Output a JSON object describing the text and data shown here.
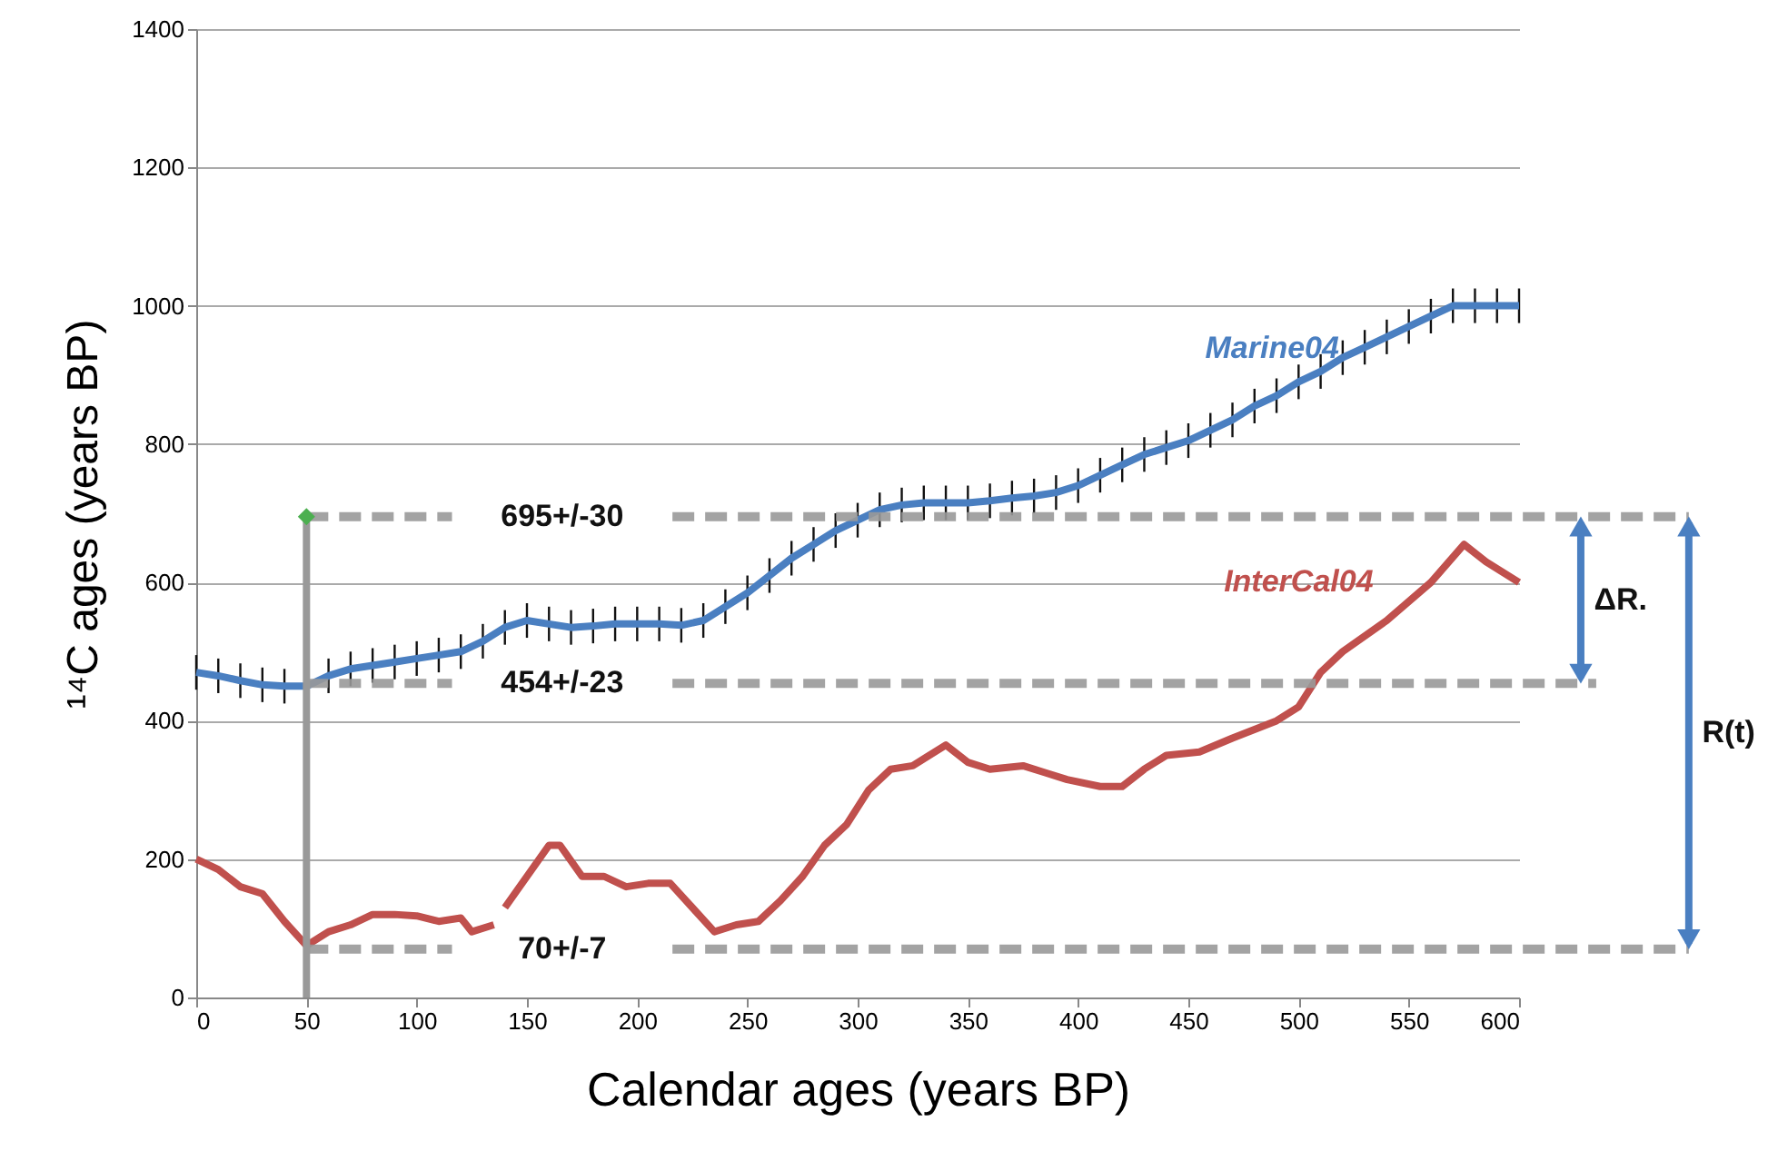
{
  "chart_data": {
    "type": "line",
    "xlabel": "Calendar ages (years BP)",
    "ylabel": "¹⁴C ages (years BP)",
    "xlim": [
      0,
      600
    ],
    "xticks": [
      0,
      50,
      100,
      150,
      200,
      250,
      300,
      350,
      400,
      450,
      500,
      550,
      600
    ],
    "ylim": [
      0,
      1400
    ],
    "yticks": [
      0,
      200,
      400,
      600,
      800,
      1000,
      1200,
      1400
    ],
    "grid": "y",
    "marker": "none",
    "line_style": "solid",
    "series": [
      {
        "name": "Marine04",
        "color": "#4a7fc1",
        "x": [
          0,
          10,
          20,
          30,
          40,
          50,
          60,
          70,
          80,
          90,
          100,
          110,
          120,
          130,
          140,
          150,
          160,
          170,
          180,
          190,
          200,
          210,
          220,
          230,
          240,
          250,
          260,
          270,
          280,
          290,
          300,
          310,
          320,
          330,
          340,
          350,
          360,
          370,
          380,
          390,
          400,
          410,
          420,
          430,
          440,
          450,
          460,
          470,
          480,
          490,
          500,
          510,
          520,
          530,
          540,
          550,
          560,
          570,
          580,
          590,
          600
        ],
        "values": [
          470,
          465,
          458,
          452,
          450,
          450,
          465,
          475,
          480,
          485,
          490,
          495,
          500,
          515,
          535,
          545,
          540,
          535,
          537,
          540,
          540,
          540,
          538,
          545,
          565,
          585,
          610,
          635,
          655,
          675,
          690,
          705,
          712,
          715,
          715,
          715,
          718,
          722,
          725,
          730,
          740,
          755,
          770,
          785,
          795,
          805,
          820,
          835,
          855,
          870,
          890,
          905,
          925,
          940,
          955,
          970,
          985,
          1000,
          1000,
          1000,
          1000
        ],
        "errors": [
          25,
          25,
          25,
          25,
          25,
          25,
          25,
          25,
          25,
          25,
          25,
          25,
          25,
          25,
          25,
          25,
          25,
          25,
          25,
          25,
          25,
          25,
          25,
          25,
          25,
          25,
          25,
          25,
          25,
          25,
          25,
          25,
          25,
          25,
          25,
          25,
          25,
          25,
          25,
          25,
          25,
          25,
          25,
          25,
          25,
          25,
          25,
          25,
          25,
          25,
          25,
          25,
          25,
          25,
          25,
          25,
          25,
          25,
          25,
          25,
          25
        ]
      },
      {
        "name": "InterCal04",
        "color": "#c0504d",
        "x": [
          0,
          10,
          20,
          30,
          40,
          50,
          60,
          70,
          80,
          90,
          100,
          110,
          120,
          125,
          135,
          138,
          140,
          150,
          160,
          165,
          175,
          185,
          195,
          205,
          215,
          225,
          235,
          245,
          255,
          265,
          275,
          285,
          295,
          305,
          315,
          325,
          340,
          350,
          360,
          375,
          385,
          395,
          410,
          420,
          430,
          440,
          455,
          470,
          490,
          500,
          510,
          520,
          540,
          560,
          575,
          585,
          600
        ],
        "values": [
          200,
          185,
          160,
          150,
          110,
          75,
          95,
          105,
          120,
          120,
          118,
          110,
          115,
          95,
          105,
          null,
          130,
          175,
          220,
          220,
          175,
          175,
          160,
          165,
          165,
          130,
          95,
          105,
          110,
          140,
          175,
          220,
          250,
          300,
          330,
          335,
          365,
          340,
          330,
          335,
          325,
          315,
          305,
          305,
          330,
          350,
          355,
          375,
          400,
          420,
          470,
          500,
          545,
          600,
          655,
          630,
          600
        ]
      },
      {
        "type": "scatter",
        "marker": "diamond",
        "color": "#4caf50",
        "x": [
          50
        ],
        "values": [
          695
        ]
      }
    ],
    "ref_lines": [
      {
        "axis": "y",
        "value": 695,
        "label": "695+/-30",
        "color": "#999999",
        "line_style": "dashed"
      },
      {
        "axis": "y",
        "value": 454,
        "label": "454+/-23",
        "color": "#999999",
        "line_style": "dashed"
      },
      {
        "axis": "y",
        "value": 70,
        "label": "70+/-7",
        "color": "#999999",
        "line_style": "dashed"
      },
      {
        "axis": "x",
        "value": 50,
        "label": null,
        "color": "#999999",
        "line_style": "solid"
      }
    ],
    "annotations": [
      "ΔR.",
      "R(t)"
    ]
  }
}
